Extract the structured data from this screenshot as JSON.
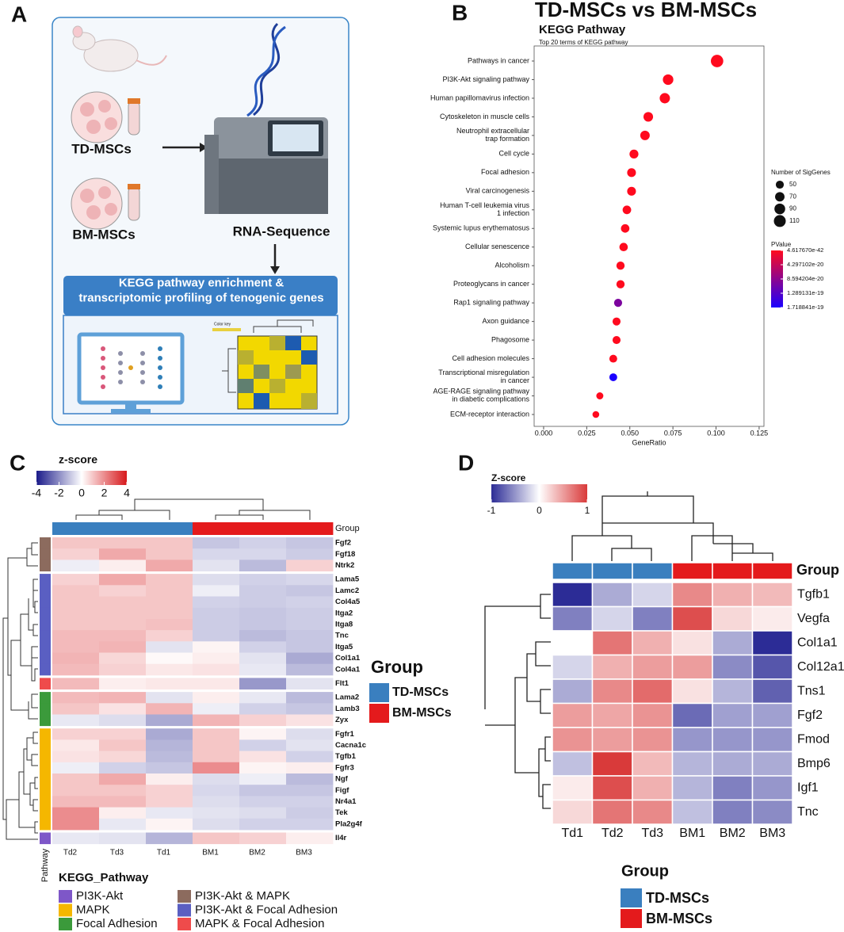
{
  "panel_labels": [
    "A",
    "B",
    "C",
    "D"
  ],
  "schematic": {
    "td_label": "TD-MSCs",
    "bm_label": "BM-MSCs",
    "seq_label": "RNA-Sequence",
    "banner": "KEGG pathway enrichment &\ntranscriptomic profiling of tenogenic genes",
    "color_key": "Color key"
  },
  "chart_data": [
    {
      "type": "scatter",
      "title": "TD-MSCs vs BM-MSCs",
      "subtitle": "KEGG Pathway",
      "note": "Top 20 terms of KEGG pathway",
      "x_label": "GeneRatio",
      "categories": [
        "Pathways in cancer",
        "PI3K-Akt signaling pathway",
        "Human papillomavirus infection",
        "Cytoskeleton in muscle cells",
        "Neutrophil extracellular\ntrap formation",
        "Cell cycle",
        "Focal adhesion",
        "Viral carcinogenesis",
        "Human T-cell leukemia virus\n1 infection",
        "Systemic lupus erythematosus",
        "Cellular senescence",
        "Alcoholism",
        "Proteoglycans in cancer",
        "Rap1 signaling pathway",
        "Axon guidance",
        "Phagosome",
        "Cell adhesion molecules",
        "Transcriptional misregulation\nin cancer",
        "AGE-RAGE signaling pathway\nin diabetic complications",
        "ECM-receptor interaction"
      ],
      "values": [
        0.1006,
        0.0722,
        0.0703,
        0.0607,
        0.0588,
        0.0524,
        0.051,
        0.051,
        0.0483,
        0.0473,
        0.0464,
        0.0446,
        0.0446,
        0.0432,
        0.0423,
        0.0423,
        0.0404,
        0.0404,
        0.0326,
        0.0303
      ],
      "sizes": [
        120,
        86,
        83,
        72,
        70,
        62,
        60,
        60,
        57,
        56,
        55,
        53,
        53,
        51,
        50,
        50,
        48,
        48,
        39,
        36
      ],
      "pvalues": [
        4.61767e-42,
        1e-40,
        2e-40,
        1e-38,
        2e-38,
        1e-36,
        3e-36,
        5e-36,
        1e-34,
        2e-34,
        5e-34,
        1e-32,
        2e-32,
        9.8e-20,
        1e-30,
        2e-30,
        1e-28,
        1.718841e-19,
        1e-26,
        1e-24
      ],
      "xlim": [
        -0.0055,
        0.1278
      ],
      "xticks": [
        {
          "value": 0,
          "label": "0.000"
        },
        0.025,
        {
          "value": 0.05,
          "label": "0.050"
        },
        0.075,
        {
          "value": 0.1,
          "label": "0.100"
        },
        0.125
      ],
      "grid": false,
      "size_legend_title": "Number of SigGenes",
      "size_legend": [
        50,
        70,
        90,
        110
      ],
      "color_legend_title": "PValue",
      "pvalue_ticks": [
        {
          "value": 4.61767e-42,
          "label": "4.617670e-42"
        },
        {
          "value": 4.297102e-20,
          "label": "4.297102e-20"
        },
        {
          "value": 8.594204e-20,
          "label": "8.594204e-20"
        },
        {
          "value": 1.289131e-19,
          "label": "1.289131e-19"
        },
        {
          "value": 1.718841e-19,
          "label": "1.718841e-19"
        }
      ],
      "pvalue_colors": [
        "#ff0a1e",
        "#1a00ff"
      ]
    },
    {
      "type": "heatmap",
      "colorbar_title": "z-score",
      "clim": [
        -4,
        4
      ],
      "cticks": [
        -4,
        -2,
        0,
        2,
        4
      ],
      "colors": [
        "#1b1b8a",
        "#ffffff",
        "#d7191c"
      ],
      "columns": [
        "Td2",
        "Td3",
        "Td1",
        "BM1",
        "BM2",
        "BM3"
      ],
      "group_label": "Group",
      "groups": [
        {
          "name": "TD-MSCs",
          "color": "#3a7fbf"
        },
        {
          "name": "BM-MSCs",
          "color": "#e41a1c"
        }
      ],
      "column_groups": [
        0,
        0,
        0,
        1,
        1,
        1
      ],
      "rows": [
        "Fgf2",
        "Fgf18",
        "Ntrk2",
        "Lama5",
        "Lamc2",
        "Col4a5",
        "Itga2",
        "Itga8",
        "Tnc",
        "Itga5",
        "Col1a1",
        "Col4a1",
        "Flt1",
        "Lama2",
        "Lamb3",
        "Zyx",
        "Fgfr1",
        "Cacna1c",
        "Tgfb1",
        "Fgfr3",
        "Ngf",
        "Figf",
        "Nr4a1",
        "Tek",
        "Pla2g4f",
        "Il4r"
      ],
      "row_pathways": [
        3,
        3,
        3,
        4,
        4,
        4,
        4,
        4,
        4,
        4,
        4,
        4,
        5,
        2,
        2,
        2,
        1,
        1,
        1,
        1,
        1,
        1,
        1,
        1,
        1,
        0
      ],
      "values": [
        [
          1,
          1,
          1,
          -1,
          -0.8,
          -1
        ],
        [
          0.8,
          1.5,
          1,
          -0.7,
          -0.7,
          -0.9
        ],
        [
          -0.3,
          0.3,
          1.5,
          -0.5,
          -1.2,
          0.8
        ],
        [
          0.8,
          1.5,
          1,
          -0.6,
          -0.8,
          -0.7
        ],
        [
          1,
          0.8,
          1,
          -0.3,
          -0.9,
          -1
        ],
        [
          1,
          1,
          1,
          -0.8,
          -0.9,
          -0.8
        ],
        [
          1,
          1,
          1,
          -0.9,
          -1,
          -0.9
        ],
        [
          1,
          1,
          1.1,
          -0.9,
          -1,
          -0.9
        ],
        [
          1.2,
          1.2,
          0.8,
          -0.9,
          -1.2,
          -1
        ],
        [
          1.2,
          1.3,
          -0.5,
          0.2,
          -0.8,
          -1
        ],
        [
          1.3,
          0.7,
          0.1,
          0.3,
          -0.5,
          -1.5
        ],
        [
          1.2,
          0.8,
          0.4,
          0.5,
          -0.4,
          -1.2
        ],
        [
          1.2,
          0.3,
          0.4,
          0.4,
          -1.8,
          -0.5
        ],
        [
          1.2,
          1.3,
          -0.5,
          0.3,
          -0.4,
          -1.2
        ],
        [
          1,
          0.5,
          1.3,
          -0.3,
          -0.8,
          -1
        ],
        [
          -0.4,
          -0.6,
          -1.5,
          1.3,
          0.8,
          0.5
        ],
        [
          0.8,
          0.8,
          -1.5,
          1,
          0.2,
          -0.6
        ],
        [
          0.4,
          1,
          -1.3,
          1,
          -0.8,
          -0.5
        ],
        [
          0.5,
          0.7,
          -1.2,
          1,
          0.5,
          -0.8
        ],
        [
          -0.3,
          -0.8,
          -1,
          2,
          0.2,
          0.3
        ],
        [
          1,
          1.5,
          0.3,
          -0.6,
          -0.3,
          -1.2
        ],
        [
          1,
          1,
          0.8,
          -0.7,
          -1,
          -1
        ],
        [
          1.2,
          1.2,
          0.8,
          -0.6,
          -0.8,
          -0.8
        ],
        [
          2,
          0.3,
          -0.4,
          -0.5,
          -0.6,
          -0.9
        ],
        [
          2,
          -0.4,
          0.2,
          -0.6,
          -0.8,
          -0.8
        ],
        [
          -0.4,
          -0.5,
          -1.3,
          1,
          0.8,
          0.3
        ]
      ],
      "pathway_axis_label": "Pathway",
      "pathway_legend_title": "KEGG_Pathway",
      "pathways": [
        {
          "name": "PI3K-Akt",
          "color": "#7e57c8"
        },
        {
          "name": "MAPK",
          "color": "#f5b700"
        },
        {
          "name": "Focal Adhesion",
          "color": "#3b9a3b"
        },
        {
          "name": "PI3K-Akt & MAPK",
          "color": "#8c6b5e"
        },
        {
          "name": "PI3K-Akt & Focal Adhesion",
          "color": "#5a5fc2"
        },
        {
          "name": "MAPK & Focal Adhesion",
          "color": "#ef4b4b"
        }
      ],
      "group_legend_title": "Group"
    },
    {
      "type": "heatmap",
      "colorbar_title": "Z-score",
      "clim": [
        -1,
        1
      ],
      "cticks": [
        -1,
        0,
        1
      ],
      "colors": [
        "#2c2c96",
        "#ffffff",
        "#d93a3a"
      ],
      "columns": [
        "Td1",
        "Td2",
        "Td3",
        "BM1",
        "BM2",
        "BM3"
      ],
      "group_label": "Group",
      "groups": [
        {
          "name": "TD-MSCs",
          "color": "#3a7fbf"
        },
        {
          "name": "BM-MSCs",
          "color": "#e41a1c"
        }
      ],
      "column_groups": [
        0,
        0,
        0,
        1,
        1,
        1
      ],
      "rows": [
        "Tgfb1",
        "Vegfa",
        "Col1a1",
        "Col12a1",
        "Tns1",
        "Fgf2",
        "Fmod",
        "Bmp6",
        "Igf1",
        "Tnc"
      ],
      "values": [
        [
          -1,
          -0.4,
          -0.2,
          0.6,
          0.4,
          0.35
        ],
        [
          -0.6,
          -0.2,
          -0.6,
          0.9,
          0.2,
          0.1
        ],
        [
          0,
          0.7,
          0.4,
          0.15,
          -0.4,
          -1
        ],
        [
          -0.2,
          0.4,
          0.5,
          0.5,
          -0.55,
          -0.8
        ],
        [
          -0.4,
          0.6,
          0.75,
          0.15,
          -0.35,
          -0.75
        ],
        [
          0.5,
          0.45,
          0.55,
          -0.7,
          -0.45,
          -0.45
        ],
        [
          0.55,
          0.5,
          0.55,
          -0.5,
          -0.5,
          -0.5
        ],
        [
          -0.3,
          1,
          0.35,
          -0.35,
          -0.4,
          -0.4
        ],
        [
          0.1,
          0.9,
          0.4,
          -0.35,
          -0.6,
          -0.5
        ],
        [
          0.2,
          0.7,
          0.6,
          -0.3,
          -0.6,
          -0.55
        ]
      ],
      "group_legend_title": "Group"
    }
  ]
}
